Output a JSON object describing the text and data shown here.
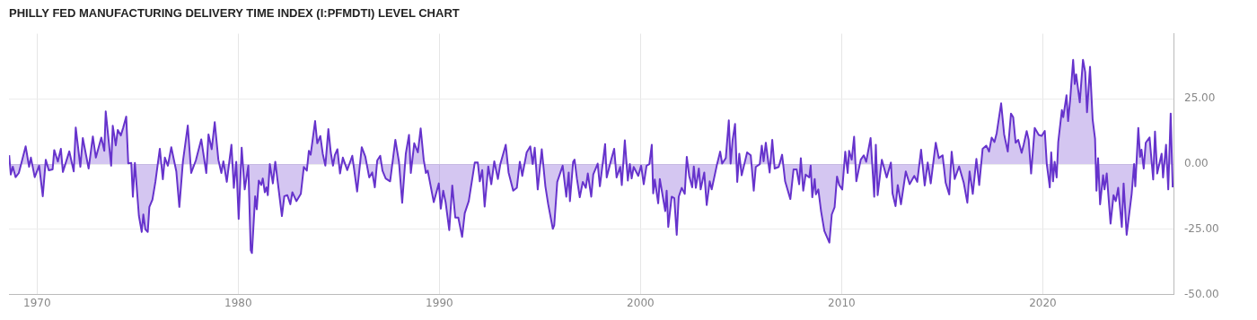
{
  "chart_data": {
    "type": "area",
    "title": "PHILLY FED MANUFACTURING DELIVERY TIME INDEX (I:PFMDTI) LEVEL CHART",
    "xlim": [
      1968.6,
      2026.5
    ],
    "xticks": [
      1970,
      1980,
      1990,
      2000,
      2010,
      2020
    ],
    "ylim": [
      -50,
      50
    ],
    "yticks": [
      {
        "value": -50,
        "label": "-50.00"
      },
      {
        "value": -25,
        "label": "-25.00"
      },
      {
        "value": 0,
        "label": "0.00"
      },
      {
        "value": 25,
        "label": "25.00"
      }
    ],
    "grid": true,
    "legend": false,
    "marker": "none",
    "line_style": "solid",
    "series": [
      {
        "color": "#6633cc",
        "x": [
          1968.61,
          1968.69,
          1968.79,
          1968.93,
          1969.09,
          1969.43,
          1969.6,
          1969.69,
          1969.88,
          1970.1,
          1970.28,
          1970.43,
          1970.58,
          1970.77,
          1970.85,
          1971.03,
          1971.18,
          1971.28,
          1971.6,
          1971.82,
          1971.92,
          1972.15,
          1972.27,
          1972.56,
          1972.77,
          1972.92,
          1973.19,
          1973.34,
          1973.41,
          1973.57,
          1973.68,
          1973.76,
          1973.91,
          1974.01,
          1974.16,
          1974.28,
          1974.43,
          1974.53,
          1974.68,
          1974.76,
          1974.86,
          1975.06,
          1975.2,
          1975.28,
          1975.38,
          1975.5,
          1975.58,
          1975.73,
          1975.88,
          1976.1,
          1976.25,
          1976.35,
          1976.5,
          1976.67,
          1976.92,
          1977.07,
          1977.25,
          1977.49,
          1977.66,
          1977.89,
          1978.16,
          1978.41,
          1978.52,
          1978.68,
          1978.83,
          1979.01,
          1979.16,
          1979.26,
          1979.43,
          1979.53,
          1979.66,
          1979.78,
          1979.9,
          1980.02,
          1980.17,
          1980.32,
          1980.5,
          1980.62,
          1980.68,
          1980.84,
          1980.92,
          1981.02,
          1981.14,
          1981.22,
          1981.32,
          1981.4,
          1981.47,
          1981.57,
          1981.72,
          1981.84,
          1982.17,
          1982.29,
          1982.44,
          1982.59,
          1982.69,
          1982.89,
          1983.11,
          1983.26,
          1983.41,
          1983.51,
          1983.6,
          1983.82,
          1983.93,
          1984.08,
          1984.2,
          1984.33,
          1984.48,
          1984.6,
          1984.71,
          1984.8,
          1984.93,
          1985.06,
          1985.2,
          1985.42,
          1985.67,
          1985.91,
          1986.14,
          1986.32,
          1986.51,
          1986.66,
          1986.79,
          1986.91,
          1987.06,
          1987.17,
          1987.33,
          1987.55,
          1987.81,
          1987.99,
          1988.15,
          1988.33,
          1988.49,
          1988.58,
          1988.75,
          1988.93,
          1989.07,
          1989.22,
          1989.33,
          1989.42,
          1989.72,
          1989.97,
          1990.07,
          1990.19,
          1990.31,
          1990.49,
          1990.64,
          1990.79,
          1990.94,
          1991.13,
          1991.26,
          1991.46,
          1991.61,
          1991.76,
          1991.91,
          1992.01,
          1992.13,
          1992.25,
          1992.43,
          1992.58,
          1992.73,
          1992.91,
          1993.03,
          1993.3,
          1993.44,
          1993.67,
          1993.85,
          1994,
          1994.12,
          1994.34,
          1994.52,
          1994.64,
          1994.74,
          1994.89,
          1995.09,
          1995.27,
          1995.41,
          1995.64,
          1995.71,
          1995.86,
          1996.13,
          1996.31,
          1996.43,
          1996.49,
          1996.65,
          1996.72,
          1996.84,
          1996.98,
          1997.13,
          1997.28,
          1997.38,
          1997.55,
          1997.65,
          1997.87,
          1997.98,
          1998.24,
          1998.32,
          1998.54,
          1998.69,
          1998.81,
          1998.99,
          1999.07,
          1999.22,
          1999.37,
          1999.47,
          1999.56,
          1999.66,
          1999.89,
          2000.03,
          2000.16,
          2000.3,
          2000.44,
          2000.56,
          2000.63,
          2000.71,
          2000.88,
          2000.96,
          2001.23,
          2001.3,
          2001.38,
          2001.55,
          2001.68,
          2001.8,
          2001.9,
          2002.05,
          2002.2,
          2002.3,
          2002.42,
          2002.57,
          2002.65,
          2002.75,
          2002.9,
          2002.99,
          2003.17,
          2003.29,
          2003.44,
          2003.54,
          2003.79,
          2003.96,
          2004.06,
          2004.24,
          2004.39,
          2004.48,
          2004.58,
          2004.7,
          2004.81,
          2004.91,
          2005.03,
          2005.3,
          2005.48,
          2005.63,
          2005.73,
          2005.93,
          2006.03,
          2006.12,
          2006.23,
          2006.42,
          2006.55,
          2006.67,
          2006.87,
          2007.04,
          2007.19,
          2007.45,
          2007.61,
          2007.76,
          2007.89,
          2007.97,
          2008.09,
          2008.21,
          2008.39,
          2008.46,
          2008.54,
          2008.66,
          2008.72,
          2008.84,
          2008.98,
          2009.14,
          2009.39,
          2009.51,
          2009.65,
          2009.77,
          2009.88,
          2010.03,
          2010.18,
          2010.3,
          2010.37,
          2010.5,
          2010.62,
          2010.73,
          2010.95,
          2011.1,
          2011.22,
          2011.44,
          2011.62,
          2011.7,
          2011.79,
          2012,
          2012.24,
          2012.45,
          2012.53,
          2012.68,
          2012.79,
          2012.95,
          2013.19,
          2013.38,
          2013.61,
          2013.76,
          2013.95,
          2014.13,
          2014.28,
          2014.43,
          2014.68,
          2014.83,
          2015.02,
          2015.17,
          2015.35,
          2015.47,
          2015.62,
          2015.84,
          2016.07,
          2016.25,
          2016.36,
          2016.52,
          2016.7,
          2016.84,
          2017.01,
          2017.19,
          2017.33,
          2017.46,
          2017.6,
          2017.71,
          2017.93,
          2018.08,
          2018.26,
          2018.42,
          2018.53,
          2018.65,
          2018.78,
          2018.95,
          2019.05,
          2019.2,
          2019.3,
          2019.42,
          2019.6,
          2019.8,
          2019.94,
          2020.1,
          2020.2,
          2020.35,
          2020.42,
          2020.51,
          2020.59,
          2020.69,
          2020.77,
          2020.95,
          2021.02,
          2021.18,
          2021.26,
          2021.36,
          2021.51,
          2021.59,
          2021.66,
          2021.84,
          2022,
          2022.11,
          2022.2,
          2022.35,
          2022.48,
          2022.6,
          2022.67,
          2022.75,
          2022.85,
          2023,
          2023.07,
          2023.18,
          2023.37,
          2023.52,
          2023.63,
          2023.75,
          2023.93,
          2024.02,
          2024.17,
          2024.42,
          2024.54,
          2024.6,
          2024.75,
          2024.84,
          2024.91,
          2025.02,
          2025.12,
          2025.31,
          2025.49,
          2025.58,
          2025.69,
          2025.91,
          2025.98,
          2026.13,
          2026.24,
          2026.36,
          2026.46
        ],
        "values": [
          3.4,
          -4,
          -1,
          -5,
          -3.4,
          6.8,
          -1,
          2.5,
          -5,
          -0.6,
          -12.3,
          1.7,
          -2.4,
          -2,
          5.4,
          1,
          5.9,
          -3,
          4.9,
          -2.8,
          14,
          -1,
          10,
          -1.7,
          10.6,
          2.5,
          10.2,
          5.1,
          20.2,
          8,
          -0.6,
          14.7,
          7.2,
          13.1,
          11,
          14,
          18.2,
          0.3,
          0.5,
          -12.5,
          0.5,
          -19.8,
          -26,
          -19.3,
          -25,
          -26,
          -16.4,
          -13.7,
          -6.8,
          5.9,
          -5.8,
          2.5,
          -0.6,
          6.5,
          -2.8,
          -16.4,
          1.1,
          14.8,
          -3.4,
          1.4,
          9.5,
          -3.4,
          11.4,
          5.7,
          16.1,
          1.7,
          -3.4,
          1.1,
          -6.8,
          -0.6,
          7.4,
          -9.1,
          0.9,
          -21,
          6.3,
          -9.7,
          -0.6,
          -33,
          -34.1,
          -12.3,
          -17.3,
          -6.3,
          -8,
          -5.5,
          -10.8,
          -8.9,
          -11.9,
          0,
          -7.4,
          0.9,
          -19.9,
          -12.3,
          -11.9,
          -15.4,
          -10.8,
          -14.2,
          -11.4,
          -1.1,
          -2.5,
          5.1,
          3.6,
          16.5,
          8,
          10.8,
          4,
          -0.6,
          13.4,
          4.5,
          -0.6,
          3.4,
          5.7,
          -3.6,
          2.5,
          -2.3,
          3.2,
          -10.5,
          6.5,
          2.8,
          -5.1,
          -3.2,
          -8.9,
          1.4,
          3.2,
          -2.5,
          -5.5,
          -6.6,
          9.3,
          0.9,
          -14.8,
          4,
          11.2,
          -3.4,
          8,
          4.5,
          13.7,
          1.7,
          -3.4,
          -2.5,
          -14.6,
          -7.4,
          -17.1,
          -10.2,
          -14.6,
          -25.3,
          -8.2,
          -20.5,
          -20.5,
          -27.9,
          -18.8,
          -14.2,
          -6.8,
          0.6,
          0.6,
          -6.6,
          -2.3,
          -16.3,
          -0.9,
          -7.7,
          1.1,
          -5.7,
          0,
          7.4,
          -3.2,
          -10.2,
          -9.1,
          0.9,
          -4.5,
          4.5,
          6.8,
          0,
          6.3,
          -9.7,
          5.7,
          -8.5,
          -15.4,
          -24.8,
          -23.5,
          -6.8,
          -0.6,
          -12.5,
          -3.2,
          -14.2,
          0.9,
          1.7,
          -5.7,
          -12.7,
          -6.8,
          -9.1,
          -3.6,
          -12.5,
          -4,
          0.2,
          -8.5,
          7.7,
          -5.1,
          1.7,
          5.9,
          -5.1,
          -1.1,
          -8,
          9.1,
          -6.3,
          0,
          -5.5,
          -1.1,
          -4.5,
          -0.6,
          -7.7,
          -0.6,
          0,
          7.4,
          -11.2,
          -5.9,
          -15,
          -5.7,
          -18,
          -10.2,
          -24.1,
          -12.5,
          -13.1,
          -27.1,
          -12.5,
          -9.1,
          -11.4,
          2.8,
          -4.5,
          -8.9,
          -0.9,
          -9.1,
          -1.7,
          -9.7,
          -3.2,
          -15.7,
          -6.6,
          -9.7,
          -0.6,
          4.8,
          0.2,
          2.3,
          16.8,
          0.2,
          9.3,
          15.4,
          -6.8,
          4,
          -4.3,
          4.5,
          3.4,
          -10.2,
          -1.1,
          0,
          7.1,
          1.1,
          8.2,
          -3.2,
          9.3,
          -1.7,
          -1.1,
          3.6,
          -6.6,
          -13.4,
          -2,
          -2,
          -7.7,
          2.3,
          -10.2,
          -4,
          -5.1,
          -0.6,
          -12.7,
          -5.7,
          -11.6,
          -9.7,
          -18.2,
          -25.6,
          -30.1,
          -19.3,
          -16.5,
          -4.8,
          -8,
          -9.7,
          4.8,
          -3.4,
          5.1,
          1.7,
          10.5,
          -6.6,
          1.7,
          3.4,
          0.9,
          10,
          -12.5,
          7.4,
          -11.9,
          1.7,
          -5.1,
          0.6,
          -11.2,
          -16.1,
          -8,
          -15.4,
          -2.8,
          -7.7,
          -4.5,
          -6.8,
          5.5,
          -8.2,
          0.6,
          -7.4,
          8.2,
          2.3,
          3.4,
          -7.1,
          -11.6,
          4.8,
          -5.7,
          -0.9,
          -7.1,
          -14.8,
          -2.8,
          -11.4,
          2,
          -8,
          5.9,
          7.1,
          4.8,
          10.2,
          8.5,
          11.9,
          23.3,
          11.4,
          4.8,
          19.4,
          18,
          8.2,
          9.3,
          4.3,
          7.4,
          12.7,
          9.3,
          -3.6,
          13.9,
          11.2,
          10.8,
          12.7,
          0,
          -8.9,
          4.5,
          -6.6,
          0.9,
          -5.1,
          8.5,
          20.7,
          18,
          26.4,
          16.5,
          24.5,
          40,
          30.7,
          34.4,
          23.7,
          40,
          35.3,
          19.9,
          37.3,
          17.1,
          9.7,
          -10.2,
          2.3,
          -15.4,
          -4.3,
          -9.7,
          -3.6,
          -22.8,
          -11.9,
          -14.2,
          -9.1,
          -24.1,
          -7.4,
          -27.1,
          -11.4,
          0,
          -8.5,
          13.9,
          2.8,
          5.5,
          -1.7,
          8.2,
          10.2,
          -5.9,
          12.5,
          -3.6,
          4,
          -5.1,
          7.4,
          -9.7,
          19.4,
          -8.9
        ]
      }
    ]
  }
}
